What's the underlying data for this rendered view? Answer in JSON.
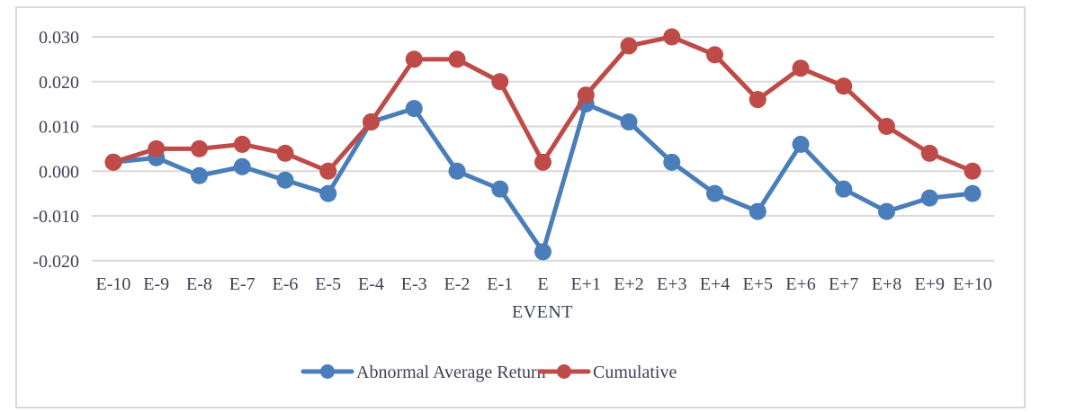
{
  "chart_data": {
    "type": "line",
    "title": "",
    "xlabel": "EVENT",
    "ylabel": "",
    "categories": [
      "E-10",
      "E-9",
      "E-8",
      "E-7",
      "E-6",
      "E-5",
      "E-4",
      "E-3",
      "E-2",
      "E-1",
      "E",
      "E+1",
      "E+2",
      "E+3",
      "E+4",
      "E+5",
      "E+6",
      "E+7",
      "E+8",
      "E+9",
      "E+10"
    ],
    "y_ticks": [
      "0.030",
      "0.020",
      "0.010",
      "0.000",
      "-0.010",
      "-0.020"
    ],
    "y_tick_values": [
      0.03,
      0.02,
      0.01,
      0.0,
      -0.01,
      -0.02
    ],
    "ylim": [
      -0.02,
      0.03
    ],
    "grid": true,
    "legend_position": "bottom",
    "series": [
      {
        "name": "Abnormal Average Return",
        "color": "#4A7EBB",
        "values": [
          0.002,
          0.003,
          -0.001,
          0.001,
          -0.002,
          -0.005,
          0.011,
          0.014,
          0.0,
          -0.004,
          -0.018,
          0.015,
          0.011,
          0.002,
          -0.005,
          -0.009,
          0.006,
          -0.004,
          -0.009,
          -0.006,
          -0.005
        ]
      },
      {
        "name": "Cumulative",
        "color": "#BE4B48",
        "values": [
          0.002,
          0.005,
          0.005,
          0.006,
          0.004,
          0.0,
          0.011,
          0.025,
          0.025,
          0.02,
          0.002,
          0.017,
          0.028,
          0.03,
          0.026,
          0.016,
          0.023,
          0.019,
          0.01,
          0.004,
          0.0
        ]
      }
    ]
  },
  "colors": {
    "gridline": "#D9D9D9",
    "frame": "#D9D9D9",
    "text": "#3F4155",
    "background": "#FFFFFF"
  }
}
